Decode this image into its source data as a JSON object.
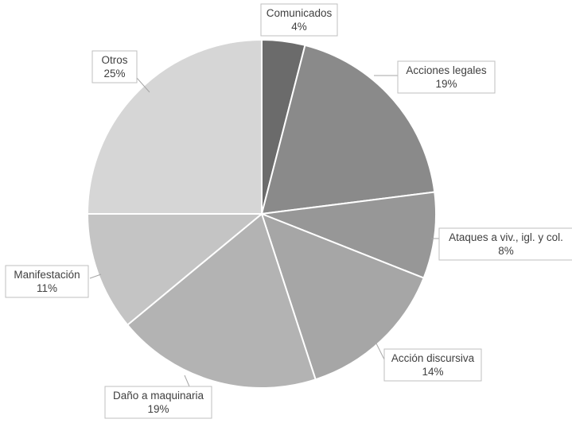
{
  "chart_data": {
    "type": "pie",
    "title": "",
    "legend": "none",
    "slices": [
      {
        "name": "Comunicados",
        "value": 4,
        "label": "4%",
        "color": "#6b6b6b"
      },
      {
        "name": "Acciones legales",
        "value": 19,
        "label": "19%",
        "color": "#8a8a8a"
      },
      {
        "name": "Ataques a viv., igl. y col.",
        "value": 8,
        "label": "8%",
        "color": "#979797"
      },
      {
        "name": "Acción discursiva",
        "value": 14,
        "label": "14%",
        "color": "#a6a6a6"
      },
      {
        "name": "Daño a maquinaria",
        "value": 19,
        "label": "19%",
        "color": "#b3b3b3"
      },
      {
        "name": "Manifestación",
        "value": 11,
        "label": "11%",
        "color": "#c4c4c4"
      },
      {
        "name": "Otros",
        "value": 25,
        "label": "25%",
        "color": "#d6d6d6"
      }
    ]
  }
}
